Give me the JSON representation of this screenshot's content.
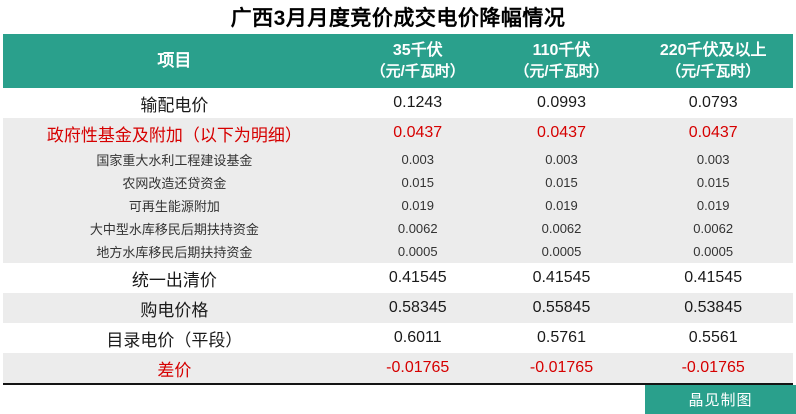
{
  "chart_data": {
    "type": "table",
    "title": "广西3月月度竞价成交电价降幅情况",
    "header": {
      "item": "项目",
      "value_columns": [
        {
          "name": "35千伏",
          "unit": "（元/千瓦时）"
        },
        {
          "name": "110千伏",
          "unit": "（元/千瓦时）"
        },
        {
          "name": "220千伏及以上",
          "unit": "（元/千瓦时）"
        }
      ]
    },
    "rows": [
      {
        "label": "输配电价",
        "values": [
          "0.1243",
          "0.0993",
          "0.0793"
        ],
        "level": "major",
        "emphasis": "none",
        "shaded": false
      },
      {
        "label": "政府性基金及附加（以下为明细）",
        "values": [
          "0.0437",
          "0.0437",
          "0.0437"
        ],
        "level": "major",
        "emphasis": "red",
        "shaded": true
      },
      {
        "label": "国家重大水利工程建设基金",
        "values": [
          "0.003",
          "0.003",
          "0.003"
        ],
        "level": "sub",
        "emphasis": "none",
        "shaded": true
      },
      {
        "label": "农网改造还贷资金",
        "values": [
          "0.015",
          "0.015",
          "0.015"
        ],
        "level": "sub",
        "emphasis": "none",
        "shaded": true
      },
      {
        "label": "可再生能源附加",
        "values": [
          "0.019",
          "0.019",
          "0.019"
        ],
        "level": "sub",
        "emphasis": "none",
        "shaded": true
      },
      {
        "label": "大中型水库移民后期扶持资金",
        "values": [
          "0.0062",
          "0.0062",
          "0.0062"
        ],
        "level": "sub",
        "emphasis": "none",
        "shaded": true
      },
      {
        "label": "地方水库移民后期扶持资金",
        "values": [
          "0.0005",
          "0.0005",
          "0.0005"
        ],
        "level": "sub",
        "emphasis": "none",
        "shaded": true
      },
      {
        "label": "统一出清价",
        "values": [
          "0.41545",
          "0.41545",
          "0.41545"
        ],
        "level": "major",
        "emphasis": "none",
        "shaded": false
      },
      {
        "label": "购电价格",
        "values": [
          "0.58345",
          "0.55845",
          "0.53845"
        ],
        "level": "major",
        "emphasis": "none",
        "shaded": true
      },
      {
        "label": "目录电价（平段）",
        "values": [
          "0.6011",
          "0.5761",
          "0.5561"
        ],
        "level": "major",
        "emphasis": "none",
        "shaded": false
      },
      {
        "label": "差价",
        "values": [
          "-0.01765",
          "-0.01765",
          "-0.01765"
        ],
        "level": "major",
        "emphasis": "red",
        "shaded": true
      }
    ]
  },
  "footer": {
    "credit_badge": "晶见制图"
  },
  "colors": {
    "accent_teal": "#2aa08c",
    "row_shade": "#ececec",
    "highlight_red": "#d60000",
    "title_color": "#000000"
  }
}
